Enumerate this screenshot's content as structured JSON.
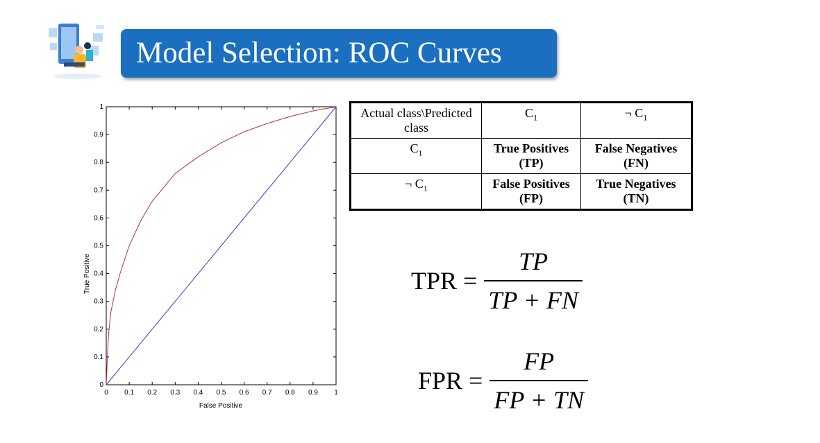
{
  "title": "Model Selection: ROC Curves",
  "table": {
    "header": [
      "Actual class\\Predicted class",
      "C1",
      "¬ C1"
    ],
    "rows": [
      {
        "label": "C1",
        "cells": [
          "True Positives (TP)",
          "False Negatives (FN)"
        ]
      },
      {
        "label": "¬ C1",
        "cells": [
          "False Positives (FP)",
          "True Negatives (TN)"
        ]
      }
    ]
  },
  "formulas": {
    "tpr": {
      "lhs": "TPR =",
      "num": "TP",
      "den": "TP + FN"
    },
    "fpr": {
      "lhs": "FPR =",
      "num": "FP",
      "den": "FP + TN"
    }
  },
  "chart_data": {
    "type": "line",
    "xlabel": "False Positive",
    "ylabel": "True Positive",
    "xlim": [
      0,
      1
    ],
    "ylim": [
      0,
      1
    ],
    "xticks": [
      "0",
      "0.1",
      "0.2",
      "0.3",
      "0.4",
      "0.5",
      "0.6",
      "0.7",
      "0.8",
      "0.9",
      "1"
    ],
    "yticks": [
      "0",
      "0.1",
      "0.2",
      "0.3",
      "0.4",
      "0.5",
      "0.6",
      "0.7",
      "0.8",
      "0.9",
      "1"
    ],
    "grid": false,
    "series": [
      {
        "color": "#b03040",
        "x": [
          0,
          0.005,
          0.01,
          0.02,
          0.04,
          0.06,
          0.08,
          0.1,
          0.15,
          0.2,
          0.25,
          0.3,
          0.35,
          0.4,
          0.5,
          0.6,
          0.7,
          0.8,
          0.9,
          1.0
        ],
        "y": [
          0,
          0.1,
          0.18,
          0.26,
          0.34,
          0.4,
          0.45,
          0.5,
          0.59,
          0.66,
          0.71,
          0.76,
          0.79,
          0.82,
          0.87,
          0.91,
          0.94,
          0.965,
          0.985,
          1.0
        ]
      },
      {
        "color": "#3b3bd0",
        "x": [
          0,
          1
        ],
        "y": [
          0,
          1
        ]
      }
    ]
  }
}
